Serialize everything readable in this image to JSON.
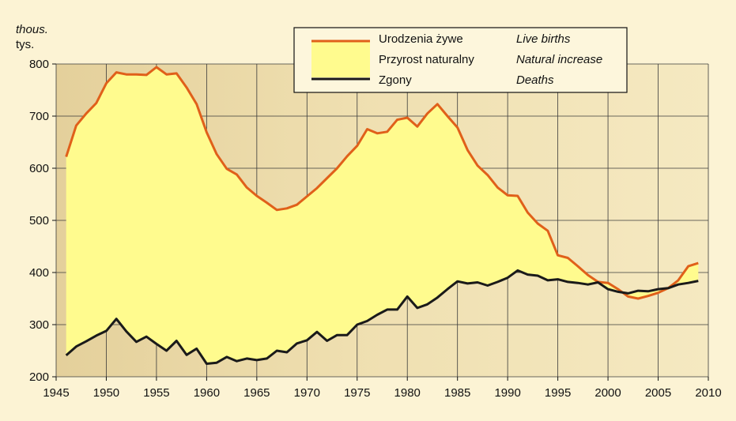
{
  "chart_data": {
    "type": "area",
    "unit_label_en": "thous.",
    "unit_label_pl": "tys.",
    "xlim": [
      1945,
      2010
    ],
    "ylim": [
      200,
      800
    ],
    "x_ticks": [
      "1945",
      "1950",
      "1955",
      "1960",
      "1965",
      "1970",
      "1975",
      "1980",
      "1985",
      "1990",
      "1995",
      "2000",
      "2005",
      "2010"
    ],
    "y_ticks": [
      "200",
      "300",
      "400",
      "500",
      "600",
      "700",
      "800"
    ],
    "grid": true,
    "legend_position": "top-right",
    "x": [
      1946,
      1947,
      1948,
      1949,
      1950,
      1951,
      1952,
      1953,
      1954,
      1955,
      1956,
      1957,
      1958,
      1959,
      1960,
      1961,
      1962,
      1963,
      1964,
      1965,
      1966,
      1967,
      1968,
      1969,
      1970,
      1971,
      1972,
      1973,
      1974,
      1975,
      1976,
      1977,
      1978,
      1979,
      1980,
      1981,
      1982,
      1983,
      1984,
      1985,
      1986,
      1987,
      1988,
      1989,
      1990,
      1991,
      1992,
      1993,
      1994,
      1995,
      1996,
      1997,
      1998,
      1999,
      2000,
      2001,
      2002,
      2003,
      2004,
      2005,
      2006,
      2007,
      2008,
      2009
    ],
    "series": [
      {
        "key": "births",
        "name_pl": "Urodzenia żywe",
        "name_en": "Live births",
        "color": "#e0601a",
        "values": [
          622,
          682,
          705,
          725,
          763,
          784,
          780,
          780,
          779,
          794,
          780,
          782,
          755,
          723,
          669,
          627,
          599,
          588,
          563,
          547,
          534,
          520,
          523,
          530,
          546,
          562,
          581,
          600,
          623,
          643,
          675,
          667,
          670,
          693,
          697,
          680,
          705,
          723,
          700,
          678,
          635,
          605,
          587,
          563,
          548,
          547,
          515,
          494,
          480,
          433,
          428,
          412,
          395,
          382,
          380,
          368,
          354,
          350,
          355,
          361,
          370,
          385,
          412,
          418
        ]
      },
      {
        "key": "deaths",
        "name_pl": "Zgony",
        "name_en": "Deaths",
        "color": "#1a1a1a",
        "values": [
          241,
          258,
          268,
          279,
          288,
          311,
          287,
          267,
          277,
          263,
          250,
          269,
          242,
          254,
          225,
          227,
          238,
          230,
          235,
          232,
          235,
          250,
          247,
          264,
          270,
          286,
          269,
          280,
          280,
          300,
          307,
          319,
          329,
          329,
          354,
          332,
          339,
          352,
          368,
          383,
          379,
          381,
          375,
          382,
          390,
          404,
          396,
          394,
          385,
          387,
          382,
          380,
          377,
          381,
          368,
          363,
          360,
          365,
          364,
          368,
          370,
          377,
          380,
          384
        ]
      }
    ],
    "area": {
      "key": "natural_increase",
      "name_pl": "Przyrost naturalny",
      "name_en": "Natural increase",
      "color": "#fffb8e"
    }
  }
}
